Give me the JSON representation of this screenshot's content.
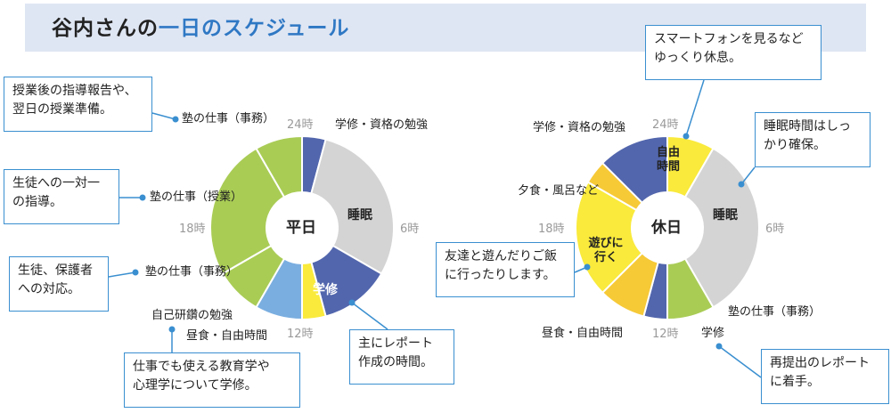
{
  "title": {
    "part1": "谷内さんの",
    "part2": "一日のスケジュール"
  },
  "colors": {
    "blue": "#5266ad",
    "gray": "#d4d4d4",
    "green": "#a9cc55",
    "lightblue": "#7aaee0",
    "yellow": "#f9ea3c",
    "orange": "#f6c937",
    "accent": "#3a8fd0"
  },
  "chart_data": [
    {
      "type": "pie",
      "title": "平日",
      "slices": [
        {
          "label": "学修・資格の勉強",
          "hours": 1,
          "color": "blue"
        },
        {
          "label": "睡眠",
          "hours": 7,
          "color": "gray"
        },
        {
          "label": "学修",
          "hours": 3,
          "color": "blue"
        },
        {
          "label": "昼食・自由時間",
          "hours": 1,
          "color": "yellow"
        },
        {
          "label": "自己研鑽の勉強",
          "hours": 2,
          "color": "lightblue"
        },
        {
          "label": "塾の仕事（事務）",
          "hours": 2,
          "color": "green"
        },
        {
          "label": "塾の仕事（授業）",
          "hours": 6,
          "color": "green"
        },
        {
          "label": "塾の仕事（事務）",
          "hours": 2,
          "color": "green"
        }
      ],
      "inner_labels": {
        "sleep": "睡眠",
        "study": "学修"
      },
      "ticks": {
        "t24": "24時",
        "t6": "6時",
        "t12": "12時",
        "t18": "18時"
      }
    },
    {
      "type": "pie",
      "title": "休日",
      "slices": [
        {
          "label": "自由時間",
          "hours": 2,
          "color": "yellow"
        },
        {
          "label": "睡眠",
          "hours": 8,
          "color": "gray"
        },
        {
          "label": "塾の仕事（事務）",
          "hours": 2,
          "color": "green"
        },
        {
          "label": "学修",
          "hours": 1,
          "color": "blue"
        },
        {
          "label": "昼食・自由時間",
          "hours": 2,
          "color": "orange"
        },
        {
          "label": "遊びに行く",
          "hours": 5,
          "color": "yellow"
        },
        {
          "label": "夕食・風呂など",
          "hours": 1,
          "color": "orange"
        },
        {
          "label": "学修・資格の勉強",
          "hours": 3,
          "color": "blue"
        }
      ],
      "inner_labels": {
        "free": "自由\n時間",
        "sleep": "睡眠",
        "play": "遊びに\n行く"
      },
      "ticks": {
        "t24": "24時",
        "t6": "6時",
        "t12": "12時",
        "t18": "18時"
      }
    }
  ],
  "weekday": {
    "labels": {
      "study_cert": "学修・資格の勉強",
      "office_top": "塾の仕事（事務）",
      "class": "塾の仕事（授業）",
      "office_bottom": "塾の仕事（事務）",
      "self_study": "自己研鑽の勉強",
      "lunch": "昼食・自由時間"
    },
    "callouts": {
      "c1": "授業後の指導報告や、\n翌日の授業準備。",
      "c2": "生徒への一対一\nの指導。",
      "c3": "生徒、保護者\nへの対応。",
      "c4": "仕事でも使える教育学や\n心理学について学修。",
      "c5": "主にレポート\n作成の時間。"
    }
  },
  "holiday": {
    "labels": {
      "study_cert": "学修・資格の勉強",
      "dinner": "夕食・風呂など",
      "lunch": "昼食・自由時間",
      "study": "学修",
      "office": "塾の仕事（事務）"
    },
    "callouts": {
      "c1": "スマートフォンを見るなど\nゆっくり休息。",
      "c2": "睡眠時間はしっ\nかり確保。",
      "c3": "友達と遊んだりご飯\nに行ったりします。",
      "c4": "再提出のレポート\nに着手。"
    }
  }
}
